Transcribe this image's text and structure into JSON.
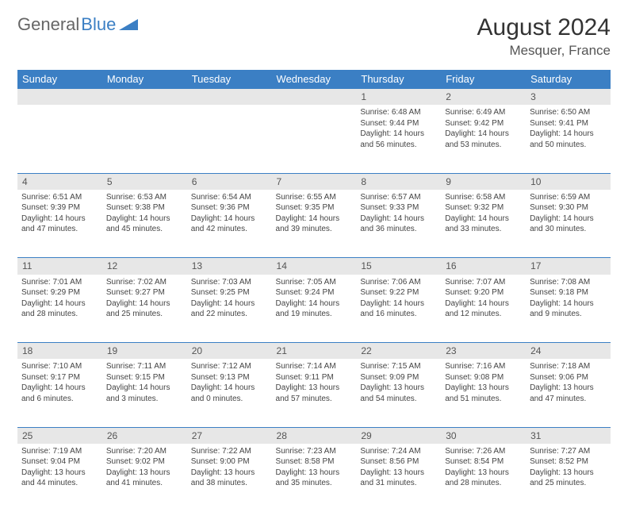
{
  "brand": {
    "word1": "General",
    "word2": "Blue"
  },
  "title": "August 2024",
  "location": "Mesquer, France",
  "colors": {
    "header_bg": "#3b7fc4",
    "header_text": "#ffffff",
    "numrow_bg": "#e7e7e7",
    "body_text": "#444444",
    "page_bg": "#ffffff"
  },
  "day_headers": [
    "Sunday",
    "Monday",
    "Tuesday",
    "Wednesday",
    "Thursday",
    "Friday",
    "Saturday"
  ],
  "weeks": [
    {
      "nums": [
        "",
        "",
        "",
        "",
        "1",
        "2",
        "3"
      ],
      "cells": [
        null,
        null,
        null,
        null,
        {
          "sunrise": "Sunrise: 6:48 AM",
          "sunset": "Sunset: 9:44 PM",
          "day1": "Daylight: 14 hours",
          "day2": "and 56 minutes."
        },
        {
          "sunrise": "Sunrise: 6:49 AM",
          "sunset": "Sunset: 9:42 PM",
          "day1": "Daylight: 14 hours",
          "day2": "and 53 minutes."
        },
        {
          "sunrise": "Sunrise: 6:50 AM",
          "sunset": "Sunset: 9:41 PM",
          "day1": "Daylight: 14 hours",
          "day2": "and 50 minutes."
        }
      ]
    },
    {
      "nums": [
        "4",
        "5",
        "6",
        "7",
        "8",
        "9",
        "10"
      ],
      "cells": [
        {
          "sunrise": "Sunrise: 6:51 AM",
          "sunset": "Sunset: 9:39 PM",
          "day1": "Daylight: 14 hours",
          "day2": "and 47 minutes."
        },
        {
          "sunrise": "Sunrise: 6:53 AM",
          "sunset": "Sunset: 9:38 PM",
          "day1": "Daylight: 14 hours",
          "day2": "and 45 minutes."
        },
        {
          "sunrise": "Sunrise: 6:54 AM",
          "sunset": "Sunset: 9:36 PM",
          "day1": "Daylight: 14 hours",
          "day2": "and 42 minutes."
        },
        {
          "sunrise": "Sunrise: 6:55 AM",
          "sunset": "Sunset: 9:35 PM",
          "day1": "Daylight: 14 hours",
          "day2": "and 39 minutes."
        },
        {
          "sunrise": "Sunrise: 6:57 AM",
          "sunset": "Sunset: 9:33 PM",
          "day1": "Daylight: 14 hours",
          "day2": "and 36 minutes."
        },
        {
          "sunrise": "Sunrise: 6:58 AM",
          "sunset": "Sunset: 9:32 PM",
          "day1": "Daylight: 14 hours",
          "day2": "and 33 minutes."
        },
        {
          "sunrise": "Sunrise: 6:59 AM",
          "sunset": "Sunset: 9:30 PM",
          "day1": "Daylight: 14 hours",
          "day2": "and 30 minutes."
        }
      ]
    },
    {
      "nums": [
        "11",
        "12",
        "13",
        "14",
        "15",
        "16",
        "17"
      ],
      "cells": [
        {
          "sunrise": "Sunrise: 7:01 AM",
          "sunset": "Sunset: 9:29 PM",
          "day1": "Daylight: 14 hours",
          "day2": "and 28 minutes."
        },
        {
          "sunrise": "Sunrise: 7:02 AM",
          "sunset": "Sunset: 9:27 PM",
          "day1": "Daylight: 14 hours",
          "day2": "and 25 minutes."
        },
        {
          "sunrise": "Sunrise: 7:03 AM",
          "sunset": "Sunset: 9:25 PM",
          "day1": "Daylight: 14 hours",
          "day2": "and 22 minutes."
        },
        {
          "sunrise": "Sunrise: 7:05 AM",
          "sunset": "Sunset: 9:24 PM",
          "day1": "Daylight: 14 hours",
          "day2": "and 19 minutes."
        },
        {
          "sunrise": "Sunrise: 7:06 AM",
          "sunset": "Sunset: 9:22 PM",
          "day1": "Daylight: 14 hours",
          "day2": "and 16 minutes."
        },
        {
          "sunrise": "Sunrise: 7:07 AM",
          "sunset": "Sunset: 9:20 PM",
          "day1": "Daylight: 14 hours",
          "day2": "and 12 minutes."
        },
        {
          "sunrise": "Sunrise: 7:08 AM",
          "sunset": "Sunset: 9:18 PM",
          "day1": "Daylight: 14 hours",
          "day2": "and 9 minutes."
        }
      ]
    },
    {
      "nums": [
        "18",
        "19",
        "20",
        "21",
        "22",
        "23",
        "24"
      ],
      "cells": [
        {
          "sunrise": "Sunrise: 7:10 AM",
          "sunset": "Sunset: 9:17 PM",
          "day1": "Daylight: 14 hours",
          "day2": "and 6 minutes."
        },
        {
          "sunrise": "Sunrise: 7:11 AM",
          "sunset": "Sunset: 9:15 PM",
          "day1": "Daylight: 14 hours",
          "day2": "and 3 minutes."
        },
        {
          "sunrise": "Sunrise: 7:12 AM",
          "sunset": "Sunset: 9:13 PM",
          "day1": "Daylight: 14 hours",
          "day2": "and 0 minutes."
        },
        {
          "sunrise": "Sunrise: 7:14 AM",
          "sunset": "Sunset: 9:11 PM",
          "day1": "Daylight: 13 hours",
          "day2": "and 57 minutes."
        },
        {
          "sunrise": "Sunrise: 7:15 AM",
          "sunset": "Sunset: 9:09 PM",
          "day1": "Daylight: 13 hours",
          "day2": "and 54 minutes."
        },
        {
          "sunrise": "Sunrise: 7:16 AM",
          "sunset": "Sunset: 9:08 PM",
          "day1": "Daylight: 13 hours",
          "day2": "and 51 minutes."
        },
        {
          "sunrise": "Sunrise: 7:18 AM",
          "sunset": "Sunset: 9:06 PM",
          "day1": "Daylight: 13 hours",
          "day2": "and 47 minutes."
        }
      ]
    },
    {
      "nums": [
        "25",
        "26",
        "27",
        "28",
        "29",
        "30",
        "31"
      ],
      "cells": [
        {
          "sunrise": "Sunrise: 7:19 AM",
          "sunset": "Sunset: 9:04 PM",
          "day1": "Daylight: 13 hours",
          "day2": "and 44 minutes."
        },
        {
          "sunrise": "Sunrise: 7:20 AM",
          "sunset": "Sunset: 9:02 PM",
          "day1": "Daylight: 13 hours",
          "day2": "and 41 minutes."
        },
        {
          "sunrise": "Sunrise: 7:22 AM",
          "sunset": "Sunset: 9:00 PM",
          "day1": "Daylight: 13 hours",
          "day2": "and 38 minutes."
        },
        {
          "sunrise": "Sunrise: 7:23 AM",
          "sunset": "Sunset: 8:58 PM",
          "day1": "Daylight: 13 hours",
          "day2": "and 35 minutes."
        },
        {
          "sunrise": "Sunrise: 7:24 AM",
          "sunset": "Sunset: 8:56 PM",
          "day1": "Daylight: 13 hours",
          "day2": "and 31 minutes."
        },
        {
          "sunrise": "Sunrise: 7:26 AM",
          "sunset": "Sunset: 8:54 PM",
          "day1": "Daylight: 13 hours",
          "day2": "and 28 minutes."
        },
        {
          "sunrise": "Sunrise: 7:27 AM",
          "sunset": "Sunset: 8:52 PM",
          "day1": "Daylight: 13 hours",
          "day2": "and 25 minutes."
        }
      ]
    }
  ]
}
